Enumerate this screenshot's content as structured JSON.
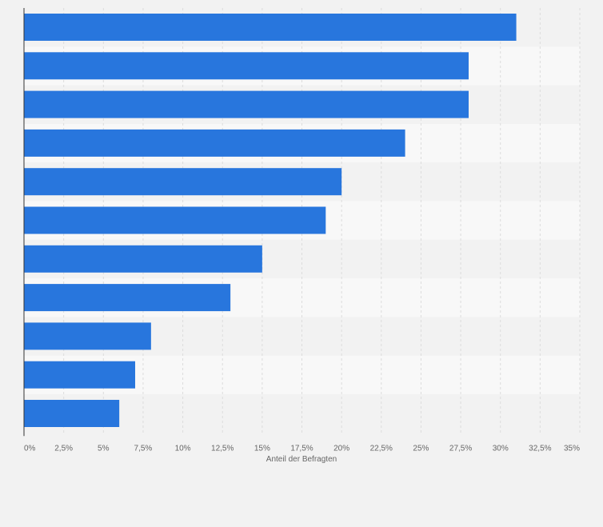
{
  "chart_data": {
    "type": "bar",
    "orientation": "horizontal",
    "categories": [
      "",
      "",
      "",
      "",
      "",
      "",
      "",
      "",
      "",
      "",
      ""
    ],
    "values": [
      31,
      28,
      28,
      24,
      20,
      19,
      15,
      13,
      8,
      7,
      6
    ],
    "xlabel": "Anteil der Befragten",
    "xlim": [
      0,
      35
    ],
    "xticks": [
      0,
      2.5,
      5,
      7.5,
      10,
      12.5,
      15,
      17.5,
      20,
      22.5,
      25,
      27.5,
      30,
      32.5,
      35
    ],
    "xtick_labels": [
      "0%",
      "2,5%",
      "5%",
      "7,5%",
      "10%",
      "12,5%",
      "15%",
      "17,5%",
      "20%",
      "22,5%",
      "25%",
      "27,5%",
      "30%",
      "32,5%",
      "35%"
    ],
    "grid": true,
    "bar_color": "#2876dd",
    "band_colors": [
      "#f2f2f2",
      "#f8f8f8"
    ],
    "gridline_color": "#dcdcdc"
  }
}
